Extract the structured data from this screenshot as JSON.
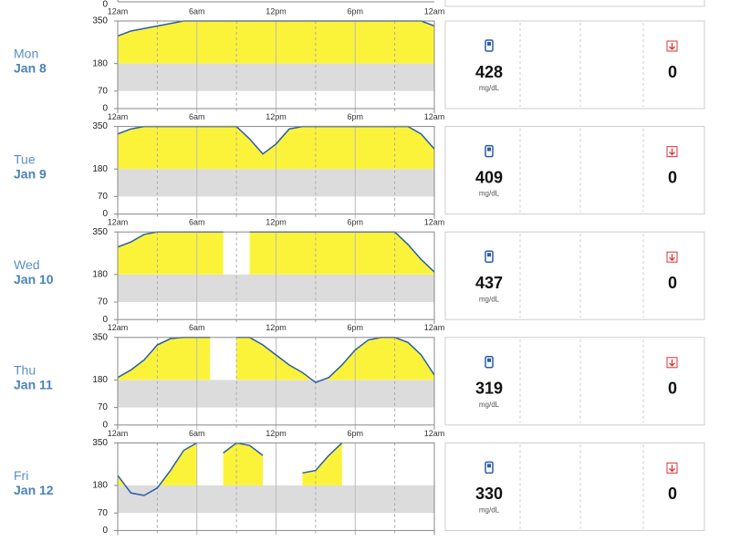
{
  "axis": {
    "x": [
      0,
      1,
      2,
      3,
      4,
      5,
      6,
      7,
      8,
      9,
      10,
      11,
      12,
      13,
      14,
      15,
      16,
      17,
      18,
      19,
      20,
      21,
      22,
      23,
      24
    ],
    "xlim": [
      0,
      24
    ],
    "ylim": [
      0,
      350
    ],
    "xticks": [
      {
        "value": 0,
        "label": "12am"
      },
      {
        "value": 6,
        "label": "6am"
      },
      {
        "value": 12,
        "label": "12pm"
      },
      {
        "value": 18,
        "label": "6pm"
      },
      {
        "value": 24,
        "label": "12am"
      }
    ],
    "minor_xticks": [
      3,
      9,
      15,
      21
    ],
    "yticks": [
      350,
      180,
      70,
      0
    ]
  },
  "days": [
    {
      "weekday": "Mon",
      "date": "Jan 8",
      "values": [
        290,
        310,
        320,
        330,
        340,
        350,
        350,
        350,
        350,
        350,
        350,
        350,
        350,
        350,
        350,
        350,
        350,
        350,
        350,
        350,
        350,
        350,
        350,
        350,
        330
      ],
      "reading": "428",
      "unit": "mg/dL",
      "lows": "0"
    },
    {
      "weekday": "Tue",
      "date": "Jan 9",
      "values": [
        320,
        340,
        350,
        350,
        350,
        350,
        350,
        350,
        350,
        350,
        300,
        240,
        280,
        340,
        350,
        350,
        350,
        350,
        350,
        350,
        350,
        350,
        350,
        320,
        260
      ],
      "reading": "409",
      "unit": "mg/dL",
      "lows": "0"
    },
    {
      "weekday": "Wed",
      "date": "Jan 10",
      "values": [
        290,
        310,
        340,
        350,
        350,
        350,
        350,
        350,
        350,
        null,
        350,
        350,
        350,
        350,
        350,
        350,
        350,
        350,
        350,
        350,
        350,
        350,
        300,
        240,
        190
      ],
      "reading": "437",
      "unit": "mg/dL",
      "lows": "0"
    },
    {
      "weekday": "Thu",
      "date": "Jan 11",
      "values": [
        190,
        220,
        260,
        320,
        345,
        350,
        350,
        350,
        null,
        350,
        350,
        320,
        280,
        240,
        210,
        170,
        190,
        240,
        300,
        340,
        350,
        350,
        330,
        280,
        200
      ],
      "reading": "319",
      "unit": "mg/dL",
      "lows": "0"
    },
    {
      "weekday": "Fri",
      "date": "Jan 12",
      "values": [
        220,
        150,
        140,
        170,
        240,
        320,
        350,
        null,
        310,
        350,
        340,
        300,
        null,
        null,
        230,
        240,
        300,
        350,
        null,
        null,
        null,
        null,
        null,
        null,
        null
      ],
      "reading": "330",
      "unit": "mg/dL",
      "lows": "0"
    }
  ]
}
